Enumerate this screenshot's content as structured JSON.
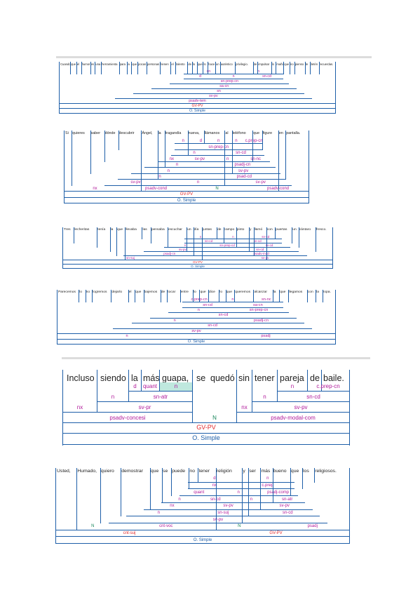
{
  "diagrams": [
    {
      "id": "d1",
      "words": [
        "Cuando",
        "que",
        "el",
        "humor",
        "es",
        "una",
        "herramienta",
        "para",
        "la",
        "que",
        "pocas",
        "personas",
        "tienen",
        "el",
        "talento",
        "de",
        "lo",
        "que",
        "lo",
        "hace",
        "un",
        "auténtico",
        "privilegio.",
        "de",
        "impulsar",
        "lo",
        "maña",
        "que",
        "no",
        "pienso",
        "te",
        "detén",
        "recuerdas."
      ],
      "rows": [
        [
          "cn",
          "n"
        ],
        [
          "d",
          "n",
          "sn-cd"
        ],
        [
          "sn-prep-cn"
        ],
        [
          "sa-cn"
        ],
        [
          "sn"
        ],
        [
          "sv-pv"
        ],
        [
          "psadv-tem"
        ],
        [
          "GV-PV"
        ],
        [
          "O. Simple"
        ]
      ]
    },
    {
      "id": "d2",
      "words": [
        "Si",
        "quieres",
        "saber",
        "dónde",
        "descubrir",
        "Ángel,",
        "la",
        "tragandía",
        "nueva,",
        "llámanos",
        "al",
        "teléfono",
        "que",
        "figure",
        "en",
        "pantalla."
      ],
      "rows": [
        [
          "n",
          "d",
          "n",
          "n",
          "c.prep-cn"
        ],
        [
          "sn-prep-cn"
        ],
        [
          "n",
          "sn-cd"
        ],
        [
          "nx",
          "sv-pv",
          "n",
          "sn-nc"
        ],
        [
          "n",
          "psadj-cn"
        ],
        [
          "n",
          "sv-pv"
        ],
        [
          "n",
          "psad-cd"
        ],
        [
          "sv-pv",
          "n",
          "sv-pv"
        ],
        [
          "nx",
          "psadv-cond",
          "N",
          "psadv-cond"
        ],
        [
          "GV-PV"
        ],
        [
          "O. Simple"
        ]
      ]
    },
    {
      "id": "d3",
      "words": [
        "Tres",
        "lecheritas",
        "tenía",
        "la",
        "que",
        "llevaba",
        "las",
        "pensaba",
        "escuchar",
        "un",
        "día",
        "juntas",
        "de",
        "campo",
        "pinto",
        "y",
        "llamó",
        "con",
        "puertas",
        "un",
        "cántaro",
        "fresco."
      ],
      "rows": [
        [
          "n",
          "n",
          "sn-cd"
        ],
        [
          "sn-cd",
          "sn-cd"
        ],
        [
          "n",
          "sn-prep-cd",
          "sv-cd"
        ],
        [
          "sv-pv",
          "sn-cd"
        ],
        [
          "psadj-cn",
          "psadv-mod"
        ],
        [
          "sn-suj",
          "sv-pv"
        ],
        [
          "GV-PV"
        ],
        [
          "O. Simple"
        ]
      ]
    },
    {
      "id": "d4",
      "words": [
        "Parecemos",
        "lo",
        "no",
        "logremos",
        "dejarlo",
        "el",
        "que",
        "bajemos",
        "de",
        "tocar",
        "entre",
        "lo",
        "que",
        "dice",
        "lo",
        "que",
        "queremos",
        "alcanzar",
        "la",
        "que",
        "llegamos",
        "con",
        "la",
        "ropa."
      ],
      "rows": [
        [
          "c.prep-cn",
          "n",
          "sn-nc"
        ],
        [
          "sn-cd",
          "sa-cn"
        ],
        [
          "n",
          "sn-prep-cn"
        ],
        [
          "sn-cd"
        ],
        [
          "n",
          "psadj-cn"
        ],
        [
          "sn-cd"
        ],
        [
          "sv-pv"
        ],
        [
          "n",
          "psadj"
        ],
        [
          "O. Simple"
        ]
      ]
    },
    {
      "id": "d5",
      "words": [
        "Incluso",
        "siendo",
        "la",
        "más",
        "guapa,",
        "se",
        "quedó",
        "sin",
        "tener",
        "pareja",
        "de",
        "baile."
      ],
      "labels": {
        "d": "d",
        "quant": "quant",
        "n_guapa": "n",
        "n_pareja": "n",
        "cprep": "c.prep-cn",
        "n_siendo": "n",
        "sn_atr": "sn-atr",
        "n_tener": "n",
        "sn_cd": "sn-cd",
        "nx1": "nx",
        "sv_pr": "sv-pr",
        "nx2": "nx",
        "sv_pv": "sv-pv",
        "psadv1": "psadv-concesi",
        "N": "N",
        "psadv2": "psadv-modal-com",
        "gv": "GV-PV",
        "os": "O. Simple"
      }
    },
    {
      "id": "d6",
      "words": [
        "Usted,",
        "Humado,",
        "quiero",
        "demostrar",
        "que",
        "se",
        "puede",
        "no",
        "tener",
        "religión",
        "y",
        "ser",
        "más",
        "bueno",
        "que",
        "los",
        "religiosos."
      ],
      "rows": [
        [
          "d",
          "n"
        ],
        [
          "nx",
          "c.prep"
        ],
        [
          "quant",
          "n",
          "psadj-comp"
        ],
        [
          "n",
          "sn-cd",
          "n",
          "sn-atr"
        ],
        [
          "nx",
          "sv-pv",
          "sv-pv"
        ],
        [
          "n",
          "sn-suj",
          "sn-cd"
        ],
        [
          "sv-pv"
        ],
        [
          "N",
          "cnt-voc",
          "N",
          "psadj"
        ],
        [
          "cnt-suj",
          "GV-PV"
        ],
        [
          "O. Simple"
        ]
      ]
    }
  ]
}
